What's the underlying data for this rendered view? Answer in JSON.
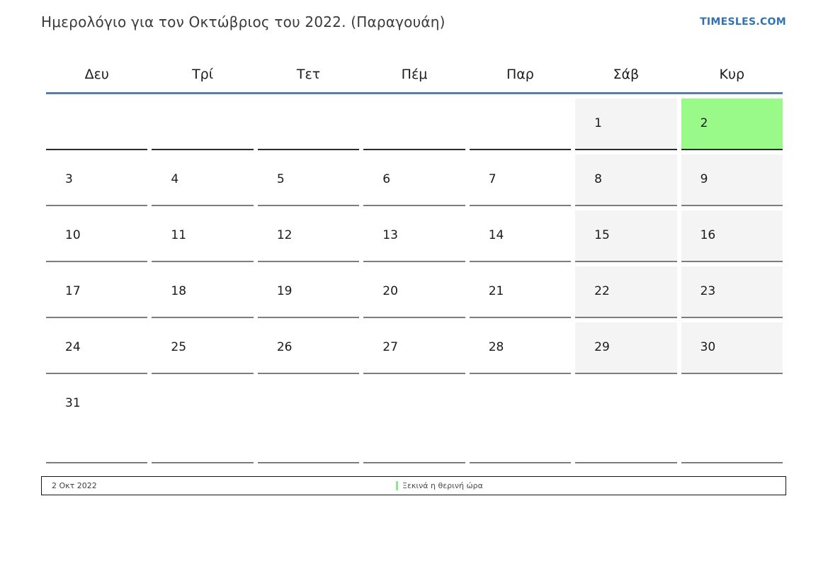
{
  "page": {
    "title": "Ημερολόγιο για τον Οκτώβριος του 2022. (Παραγουάη)",
    "site_link": "TIMESLES.COM"
  },
  "calendar": {
    "weekday_headers": [
      "Δευ",
      "Τρί",
      "Τετ",
      "Πέμ",
      "Παρ",
      "Σάβ",
      "Κυρ"
    ],
    "today": "2",
    "weeks": [
      {
        "current": true,
        "days": [
          {
            "label": ""
          },
          {
            "label": ""
          },
          {
            "label": ""
          },
          {
            "label": ""
          },
          {
            "label": ""
          },
          {
            "label": "1",
            "shaded": true
          },
          {
            "label": "2",
            "today": true
          }
        ]
      },
      {
        "current": false,
        "days": [
          {
            "label": "3"
          },
          {
            "label": "4"
          },
          {
            "label": "5"
          },
          {
            "label": "6"
          },
          {
            "label": "7"
          },
          {
            "label": "8",
            "shaded": true
          },
          {
            "label": "9",
            "shaded": true
          }
        ]
      },
      {
        "current": false,
        "days": [
          {
            "label": "10"
          },
          {
            "label": "11"
          },
          {
            "label": "12"
          },
          {
            "label": "13"
          },
          {
            "label": "14"
          },
          {
            "label": "15",
            "shaded": true
          },
          {
            "label": "16",
            "shaded": true
          }
        ]
      },
      {
        "current": false,
        "days": [
          {
            "label": "17"
          },
          {
            "label": "18"
          },
          {
            "label": "19"
          },
          {
            "label": "20"
          },
          {
            "label": "21"
          },
          {
            "label": "22",
            "shaded": true
          },
          {
            "label": "23",
            "shaded": true
          }
        ]
      },
      {
        "current": false,
        "days": [
          {
            "label": "24"
          },
          {
            "label": "25"
          },
          {
            "label": "26"
          },
          {
            "label": "27"
          },
          {
            "label": "28"
          },
          {
            "label": "29",
            "shaded": true
          },
          {
            "label": "30",
            "shaded": true
          }
        ]
      },
      {
        "current": false,
        "days": [
          {
            "label": "31"
          },
          {
            "label": ""
          },
          {
            "label": ""
          },
          {
            "label": ""
          },
          {
            "label": ""
          },
          {
            "label": ""
          },
          {
            "label": ""
          }
        ]
      }
    ],
    "colors": {
      "today_bg": "#99fa8a",
      "weekend_bg": "#f4f4f4",
      "header_rule": "#5b7ea8",
      "current_week_border": "#2b2b2b",
      "row_border": "#7d7d7d",
      "link": "#2e74b5",
      "legend_marker": "#8de88d"
    }
  },
  "footer": {
    "date": "2 Οκτ 2022",
    "legend": "Ξεκινά η θερινή ώρα"
  }
}
